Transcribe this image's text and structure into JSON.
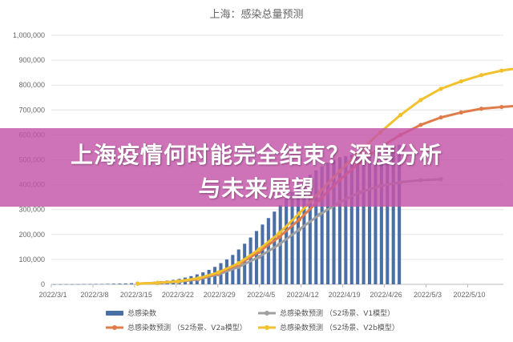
{
  "banner": {
    "line1": "上海疫情何时能完全结束？深度分析",
    "line2": "与未来展望",
    "color": "#c454aa"
  },
  "chart_data": {
    "type": "line",
    "title": "上海：感染总量预测",
    "xlabel": "",
    "ylabel": "",
    "ylim": [
      0,
      1000000
    ],
    "yticks": [
      "0",
      "100,000",
      "200,000",
      "300,000",
      "400,000",
      "500,000",
      "600,000",
      "700,000",
      "800,000",
      "900,000",
      "1,000,000"
    ],
    "xticks": [
      "2022/3/1",
      "2022/3/8",
      "2022/3/15",
      "2022/3/22",
      "2022/3/29",
      "2022/4/5",
      "2022/4/12",
      "2022/4/19",
      "2022/4/26",
      "2022/5/3",
      "2022/5/10"
    ],
    "grid": true,
    "legend_position": "bottom",
    "series": [
      {
        "name": "总感染数",
        "kind": "bar",
        "color": "#4a6fa5",
        "start_day": 0,
        "values": [
          200,
          250,
          300,
          400,
          500,
          700,
          900,
          1200,
          1500,
          2000,
          2500,
          3000,
          3500,
          4500,
          5500,
          7000,
          9000,
          11000,
          13000,
          15000,
          18000,
          22000,
          27000,
          33000,
          40000,
          48000,
          58000,
          70000,
          85000,
          100000,
          118000,
          140000,
          163000,
          188000,
          214000,
          240000,
          266000,
          292000,
          318000,
          344000,
          370000,
          395000,
          420000,
          440000,
          458000,
          474000,
          488000,
          500000,
          510000,
          515000,
          520000,
          525000,
          530000,
          535000,
          540000,
          545000,
          550000,
          555000,
          560000
        ]
      },
      {
        "name": "总感染数预测 （S2场景、V1模型）",
        "kind": "line",
        "color": "#a0a0a0",
        "start_day": 14,
        "values": [
          2500,
          5000,
          10000,
          20000,
          40000,
          70000,
          110000,
          160000,
          220000,
          280000,
          330000,
          370000,
          395000,
          410000,
          418000,
          422000
        ]
      },
      {
        "name": "总感染数预测 （S2场景、V2a模型）",
        "kind": "line",
        "color": "#e07b4a",
        "start_day": 14,
        "values": [
          3000,
          6000,
          12000,
          22000,
          45000,
          80000,
          130000,
          190000,
          260000,
          340000,
          420000,
          490000,
          550000,
          600000,
          640000,
          670000,
          690000,
          705000,
          712000,
          718000
        ]
      },
      {
        "name": "总感染数预测 （S2场景、V2b模型）",
        "kind": "line",
        "color": "#f2c12e",
        "start_day": 14,
        "values": [
          3000,
          6000,
          12000,
          24000,
          48000,
          85000,
          140000,
          205000,
          285000,
          370000,
          455000,
          535000,
          610000,
          680000,
          740000,
          785000,
          815000,
          840000,
          858000,
          870000
        ]
      }
    ]
  }
}
